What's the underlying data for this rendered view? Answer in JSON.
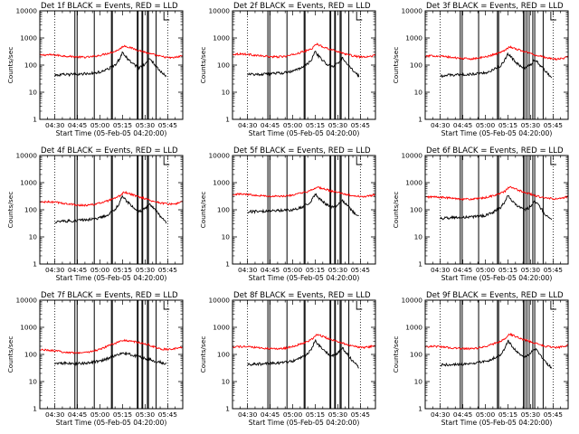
{
  "chart_data": {
    "type": "line",
    "grid_layout": {
      "rows": 3,
      "cols": 3
    },
    "panel_title_suffix": "BLACK = Events, RED = LLD",
    "xlabel": "Start Time (05-Feb-05 04:20:00)",
    "ylabel": "Counts/sec",
    "x_unit": "minutes after 04:20:00",
    "xlim": [
      0,
      95
    ],
    "x_ticks": [
      {
        "value": 10,
        "label": "04:30"
      },
      {
        "value": 25,
        "label": "04:45"
      },
      {
        "value": 40,
        "label": "05:00"
      },
      {
        "value": 55,
        "label": "05:15"
      },
      {
        "value": 70,
        "label": "05:30"
      },
      {
        "value": 85,
        "label": "05:45"
      }
    ],
    "y_scale": "log",
    "ylim": [
      1,
      10000
    ],
    "y_ticks": [
      {
        "value": 1,
        "label": "1"
      },
      {
        "value": 10,
        "label": "10"
      },
      {
        "value": 100,
        "label": "100"
      },
      {
        "value": 1000,
        "label": "1000"
      },
      {
        "value": 10000,
        "label": "10000"
      }
    ],
    "series_legend": [
      {
        "name": "Events",
        "color": "#000000"
      },
      {
        "name": "LLD",
        "color": "#ff0000"
      }
    ],
    "colors": {
      "events": "#000000",
      "lld": "#ff0000",
      "axes": "#000000"
    },
    "dotted_markers_minutes": [
      10,
      85
    ],
    "panels": [
      {
        "title": "Det 1f",
        "vlines": [
          23.3,
          24.8,
          36.2,
          47.6,
          48.2,
          64.8,
          65.3,
          67.9,
          68.4,
          71.5,
          72.2,
          77.3
        ],
        "corner_lines": [
          82.5
        ],
        "lld": {
          "x": [
            0,
            5,
            10,
            15,
            20,
            25,
            30,
            35,
            40,
            45,
            50,
            53,
            56,
            60,
            65,
            70,
            73,
            76,
            80,
            85,
            88,
            92,
            95
          ],
          "values": [
            230,
            240,
            235,
            220,
            210,
            200,
            195,
            205,
            230,
            270,
            320,
            390,
            520,
            440,
            360,
            300,
            260,
            240,
            210,
            190,
            185,
            200,
            230
          ]
        },
        "events": {
          "x": [
            10,
            15,
            20,
            25,
            30,
            35,
            40,
            45,
            50,
            53,
            55,
            58,
            62,
            66,
            70,
            73,
            76,
            80,
            84
          ],
          "values": [
            42,
            44,
            45,
            46,
            48,
            50,
            55,
            70,
            100,
            170,
            290,
            180,
            110,
            80,
            110,
            170,
            110,
            60,
            38
          ]
        }
      },
      {
        "title": "Det 2f",
        "vlines": [
          23.5,
          24.8,
          36.2,
          47.6,
          48.2,
          64.8,
          65.3,
          67.9,
          68.4,
          71.5,
          72.2,
          77.3
        ],
        "corner_lines": [
          82.5
        ],
        "lld": {
          "x": [
            0,
            5,
            10,
            15,
            20,
            25,
            30,
            35,
            40,
            45,
            50,
            53,
            56,
            60,
            65,
            70,
            73,
            76,
            80,
            85,
            88,
            92,
            95
          ],
          "values": [
            250,
            260,
            250,
            230,
            215,
            205,
            200,
            210,
            240,
            290,
            350,
            420,
            600,
            480,
            380,
            320,
            280,
            250,
            220,
            200,
            195,
            210,
            240
          ]
        },
        "events": {
          "x": [
            10,
            15,
            20,
            25,
            30,
            35,
            40,
            45,
            50,
            53,
            55,
            58,
            62,
            66,
            70,
            73,
            76,
            80,
            84
          ],
          "values": [
            45,
            46,
            47,
            48,
            50,
            52,
            58,
            75,
            110,
            180,
            310,
            190,
            115,
            85,
            115,
            180,
            115,
            62,
            40
          ]
        }
      },
      {
        "title": "Det 3f",
        "vlines": [
          23.3,
          24.6,
          35.5,
          48.0,
          48.8,
          65.3,
          66.2,
          67.6,
          69.1,
          71.5,
          72.8,
          78.4
        ],
        "corner_lines": [
          83.5
        ],
        "lld": {
          "x": [
            0,
            5,
            10,
            15,
            20,
            25,
            30,
            35,
            40,
            45,
            50,
            53,
            56,
            60,
            65,
            70,
            73,
            76,
            80,
            85,
            88,
            92,
            95
          ],
          "values": [
            210,
            220,
            215,
            200,
            185,
            175,
            170,
            180,
            200,
            240,
            290,
            360,
            480,
            400,
            330,
            270,
            235,
            215,
            190,
            170,
            165,
            180,
            210
          ]
        },
        "events": {
          "x": [
            10,
            15,
            20,
            25,
            30,
            35,
            40,
            45,
            50,
            53,
            55,
            58,
            62,
            66,
            70,
            73,
            76,
            80,
            84
          ],
          "values": [
            40,
            42,
            43,
            44,
            46,
            48,
            53,
            68,
            95,
            160,
            270,
            170,
            105,
            75,
            105,
            160,
            105,
            58,
            36
          ]
        }
      },
      {
        "title": "Det 4f",
        "vlines": [
          23.3,
          24.8,
          36.2,
          47.6,
          48.2,
          64.8,
          65.3,
          67.9,
          68.4,
          71.5,
          72.2,
          77.3
        ],
        "corner_lines": [
          82.5
        ],
        "lld": {
          "x": [
            0,
            5,
            10,
            15,
            20,
            25,
            30,
            35,
            40,
            45,
            50,
            53,
            56,
            60,
            65,
            70,
            73,
            76,
            80,
            85,
            88,
            92,
            95
          ],
          "values": [
            190,
            195,
            190,
            175,
            160,
            150,
            145,
            155,
            175,
            210,
            260,
            320,
            450,
            380,
            310,
            260,
            225,
            205,
            180,
            165,
            160,
            175,
            200
          ]
        },
        "events": {
          "x": [
            10,
            15,
            20,
            25,
            30,
            35,
            40,
            45,
            50,
            53,
            55,
            58,
            62,
            66,
            70,
            73,
            76,
            80,
            84
          ],
          "values": [
            36,
            38,
            39,
            40,
            42,
            45,
            50,
            65,
            100,
            180,
            330,
            200,
            120,
            85,
            110,
            170,
            110,
            58,
            32
          ]
        }
      },
      {
        "title": "Det 5f",
        "vlines": [
          23.5,
          24.8,
          36.2,
          47.6,
          48.2,
          64.8,
          65.3,
          67.9,
          68.4,
          71.5,
          72.2,
          77.3
        ],
        "corner_lines": [
          82.5
        ],
        "lld": {
          "x": [
            0,
            5,
            10,
            15,
            20,
            25,
            30,
            35,
            40,
            45,
            50,
            53,
            56,
            60,
            65,
            70,
            73,
            76,
            80,
            85,
            88,
            92,
            95
          ],
          "values": [
            370,
            380,
            370,
            350,
            330,
            315,
            310,
            320,
            350,
            400,
            460,
            540,
            700,
            600,
            500,
            430,
            390,
            360,
            330,
            310,
            305,
            330,
            380
          ]
        },
        "events": {
          "x": [
            10,
            15,
            20,
            25,
            30,
            35,
            40,
            45,
            50,
            53,
            55,
            58,
            62,
            66,
            70,
            73,
            76,
            80,
            84
          ],
          "values": [
            85,
            86,
            88,
            90,
            93,
            96,
            100,
            118,
            160,
            240,
            380,
            250,
            165,
            125,
            150,
            220,
            145,
            85,
            60
          ]
        }
      },
      {
        "title": "Det 6f",
        "vlines": [
          23.3,
          24.6,
          35.5,
          48.0,
          48.8,
          65.3,
          66.2,
          67.6,
          69.1,
          71.5,
          72.8,
          78.4
        ],
        "corner_lines": [
          83.5
        ],
        "lld": {
          "x": [
            0,
            5,
            10,
            15,
            20,
            25,
            30,
            35,
            40,
            45,
            50,
            53,
            56,
            60,
            65,
            70,
            73,
            76,
            80,
            85,
            88,
            92,
            95
          ],
          "values": [
            290,
            300,
            290,
            275,
            260,
            250,
            245,
            255,
            280,
            330,
            400,
            480,
            700,
            580,
            460,
            380,
            330,
            300,
            270,
            255,
            250,
            270,
            310
          ]
        },
        "events": {
          "x": [
            10,
            15,
            20,
            25,
            30,
            35,
            40,
            45,
            50,
            53,
            55,
            58,
            62,
            66,
            70,
            73,
            76,
            80,
            84
          ],
          "values": [
            48,
            50,
            51,
            52,
            54,
            57,
            62,
            80,
            120,
            200,
            340,
            210,
            130,
            95,
            130,
            210,
            130,
            68,
            40
          ]
        }
      },
      {
        "title": "Det 7f",
        "vlines": [
          23.3,
          24.8,
          36.2,
          47.6,
          48.2,
          64.8,
          65.3,
          67.9,
          68.4,
          71.5,
          72.2,
          77.3
        ],
        "corner_lines": [
          82.5
        ],
        "lld": {
          "x": [
            0,
            5,
            10,
            15,
            20,
            25,
            30,
            35,
            40,
            45,
            50,
            53,
            56,
            60,
            65,
            70,
            73,
            76,
            80,
            85,
            88,
            92,
            95
          ],
          "values": [
            150,
            145,
            135,
            125,
            118,
            115,
            118,
            130,
            155,
            200,
            260,
            300,
            330,
            310,
            280,
            250,
            220,
            190,
            160,
            150,
            155,
            170,
            185
          ]
        },
        "events": {
          "x": [
            10,
            15,
            20,
            25,
            30,
            35,
            40,
            45,
            50,
            53,
            56,
            60,
            65,
            70,
            75,
            80,
            84
          ],
          "values": [
            45,
            48,
            47,
            46,
            48,
            52,
            58,
            70,
            90,
            105,
            115,
            100,
            85,
            72,
            60,
            52,
            45
          ]
        }
      },
      {
        "title": "Det 8f",
        "vlines": [
          23.5,
          24.8,
          36.2,
          47.6,
          48.2,
          64.8,
          65.3,
          67.9,
          68.4,
          71.5,
          72.2,
          77.3
        ],
        "corner_lines": [
          82.5
        ],
        "lld": {
          "x": [
            0,
            5,
            10,
            15,
            20,
            25,
            30,
            35,
            40,
            45,
            50,
            53,
            56,
            60,
            65,
            70,
            73,
            76,
            80,
            85,
            88,
            92,
            95
          ],
          "values": [
            190,
            195,
            190,
            180,
            170,
            165,
            160,
            170,
            195,
            240,
            300,
            380,
            560,
            460,
            360,
            300,
            260,
            230,
            200,
            185,
            180,
            195,
            225
          ]
        },
        "events": {
          "x": [
            10,
            15,
            20,
            25,
            30,
            35,
            40,
            45,
            50,
            53,
            55,
            58,
            62,
            66,
            70,
            73,
            76,
            80,
            84
          ],
          "values": [
            42,
            44,
            45,
            46,
            48,
            51,
            56,
            72,
            105,
            180,
            330,
            200,
            120,
            85,
            115,
            175,
            110,
            55,
            34
          ]
        }
      },
      {
        "title": "Det 9f",
        "vlines": [
          23.3,
          24.6,
          35.5,
          48.0,
          48.8,
          65.3,
          66.2,
          67.6,
          69.1,
          71.5,
          72.8,
          78.4
        ],
        "corner_lines": [
          83.5
        ],
        "lld": {
          "x": [
            0,
            5,
            10,
            15,
            20,
            25,
            30,
            35,
            40,
            45,
            50,
            53,
            56,
            60,
            65,
            70,
            73,
            76,
            80,
            85,
            88,
            92,
            95
          ],
          "values": [
            195,
            200,
            195,
            180,
            170,
            165,
            160,
            170,
            195,
            240,
            300,
            380,
            560,
            460,
            360,
            300,
            260,
            230,
            200,
            185,
            180,
            195,
            225
          ]
        },
        "events": {
          "x": [
            10,
            15,
            20,
            25,
            30,
            35,
            40,
            45,
            50,
            53,
            55,
            58,
            62,
            66,
            70,
            73,
            76,
            80,
            84
          ],
          "values": [
            40,
            42,
            43,
            44,
            46,
            49,
            54,
            70,
            100,
            175,
            320,
            195,
            115,
            80,
            110,
            165,
            105,
            52,
            32
          ]
        }
      }
    ]
  }
}
